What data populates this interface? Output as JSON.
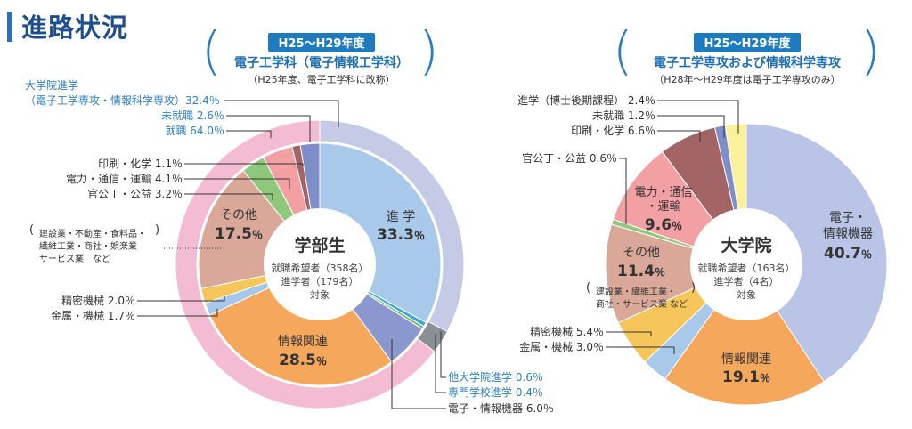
{
  "page_title": "進路状況",
  "left": {
    "period": "H25〜H29年度",
    "dept": "電子工学科（電子情報工学科）",
    "note": "（H25年度、電子工学科に改称）",
    "center": {
      "title": "学部生",
      "line1": "就職希望者（358名）",
      "line2": "進学者（179名）",
      "line3": "対象"
    },
    "outer_labels": {
      "grad_line1": "大学院進学",
      "grad_line2": "（電子工学専攻・情報科学専攻）32.4％",
      "unemployed": "未就職 2.6％",
      "employed": "就職 64.0％"
    },
    "side_labels": {
      "printing": "印刷・化学 1.1％",
      "power": "電力・通信・運輸 4.1％",
      "public": "官公丁・公益 3.2％",
      "other_note1": "建設業・不動産・食料品・",
      "other_note2": "繊維工業・商社・娯楽業",
      "other_note3": "サービス業　など",
      "precision": "精密機械 2.0％",
      "metal": "金属・機械 1.7％",
      "other_grad": "他大学院進学 0.6％",
      "vocational": "専門学校進学 0.4％",
      "electronics": "電子・情報機器 6.0％"
    },
    "inner_labels": {
      "advance": "進 学",
      "advance_pct": "33.3",
      "info": "情報関連",
      "info_pct": "28.5",
      "other": "その他",
      "other_pct": "17.5"
    }
  },
  "right": {
    "period": "H25〜H29年度",
    "dept": "電子工学専攻および情報科学専攻",
    "note": "（H28年〜H29年度は電子工学専攻のみ）",
    "center": {
      "title": "大学院",
      "line1": "就職希望者（163名）",
      "line2": "進学者（4名）",
      "line3": "対象"
    },
    "side_labels": {
      "doctor": "進学（博士後期課程） 2.4％",
      "unemployed": "未就職 1.2％",
      "printing": "印刷・化学 6.6％",
      "public": "官公丁・公益 0.6％",
      "other_note1": "建設業・繊維工業・",
      "other_note2": "商社・サービス業 など",
      "precision": "精密機械 5.4％",
      "metal": "金属・機械 3.0％"
    },
    "inner_labels": {
      "elec": "電子・",
      "elec2": "情報機器",
      "elec_pct": "40.7",
      "info": "情報関連",
      "info_pct": "19.1",
      "power1": "電力・通信",
      "power2": "・運輸",
      "power_pct": "9.6",
      "other": "その他",
      "other_pct": "11.4"
    }
  },
  "percent_sign": "％",
  "chart_data": [
    {
      "type": "pie",
      "title": "電子工学科（電子情報工学科）",
      "outer_ring": [
        {
          "label": "大学院進学",
          "value": 32.4
        },
        {
          "label": "未就職",
          "value": 2.6
        },
        {
          "label": "就職",
          "value": 64.0
        }
      ],
      "inner_pie": [
        {
          "label": "進学",
          "value": 33.3,
          "color": "#a9c9ea"
        },
        {
          "label": "他大学院進学",
          "value": 0.6,
          "color": "#3fa9d8"
        },
        {
          "label": "専門学校進学",
          "value": 0.4,
          "color": "#7fb85a"
        },
        {
          "label": "電子・情報機器",
          "value": 6.0,
          "color": "#8b97cf"
        },
        {
          "label": "情報関連",
          "value": 28.5,
          "color": "#f5a75c"
        },
        {
          "label": "金属・機械",
          "value": 1.7,
          "color": "#a5c8ea"
        },
        {
          "label": "精密機械",
          "value": 2.0,
          "color": "#f6c65a"
        },
        {
          "label": "その他",
          "value": 17.5,
          "color": "#d9a898"
        },
        {
          "label": "官公丁・公益",
          "value": 3.2,
          "color": "#8fc77b"
        },
        {
          "label": "電力・通信・運輸",
          "value": 4.1,
          "color": "#f2a0a4"
        },
        {
          "label": "印刷・化学",
          "value": 1.1,
          "color": "#a26464"
        },
        {
          "label": "未就職",
          "value": 2.6,
          "color": "#7f8ec9"
        }
      ]
    },
    {
      "type": "pie",
      "title": "電子工学専攻および情報科学専攻",
      "inner_pie": [
        {
          "label": "電子・情報機器",
          "value": 40.7,
          "color": "#b9c4e6"
        },
        {
          "label": "情報関連",
          "value": 19.1,
          "color": "#f5a75c"
        },
        {
          "label": "金属・機械",
          "value": 3.0,
          "color": "#a9c9ea"
        },
        {
          "label": "精密機械",
          "value": 5.4,
          "color": "#f6c65a"
        },
        {
          "label": "その他",
          "value": 11.4,
          "color": "#d9a898"
        },
        {
          "label": "官公丁・公益",
          "value": 0.6,
          "color": "#8fc77b"
        },
        {
          "label": "電力・通信・運輸",
          "value": 9.6,
          "color": "#f2a0a4"
        },
        {
          "label": "印刷・化学",
          "value": 6.6,
          "color": "#a26464"
        },
        {
          "label": "未就職",
          "value": 1.2,
          "color": "#7f8ec9"
        },
        {
          "label": "進学（博士後期課程）",
          "value": 2.4,
          "color": "#fbf19b"
        }
      ]
    }
  ]
}
